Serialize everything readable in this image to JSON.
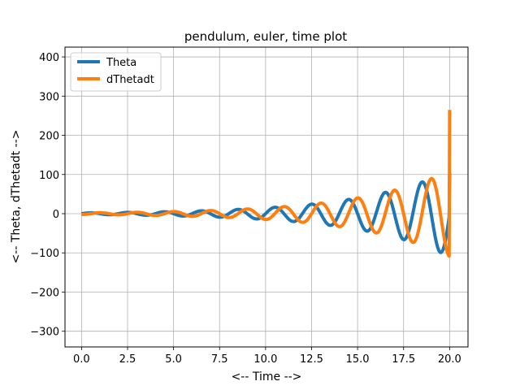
{
  "chart_data": {
    "type": "line",
    "title": "pendulum, euler, time plot",
    "xlabel": "<-- Time -->",
    "ylabel": "<-- Theta, dThetadt -->",
    "xlim": [
      -0.9,
      21.0
    ],
    "ylim": [
      -340,
      425
    ],
    "xticks": [
      0.0,
      2.5,
      5.0,
      7.5,
      10.0,
      12.5,
      15.0,
      17.5,
      20.0
    ],
    "xtick_labels": [
      "0.0",
      "2.5",
      "5.0",
      "7.5",
      "10.0",
      "12.5",
      "15.0",
      "17.5",
      "20.0"
    ],
    "yticks": [
      -300,
      -200,
      -100,
      0,
      100,
      200,
      300,
      400
    ],
    "ytick_labels": [
      "−300",
      "−200",
      "−100",
      "0",
      "100",
      "200",
      "300",
      "400"
    ],
    "grid": true,
    "legend_position": "top-left",
    "series": [
      {
        "name": "Theta",
        "color": "#1f77b4",
        "model": {
          "amplitude": 2,
          "growth_rate": 0.2,
          "omega": 3.14159,
          "phase": 1.5708
        },
        "x_range": [
          0,
          20
        ],
        "x_end_value_y": 103
      },
      {
        "name": "dThetadt",
        "color": "#ff7f0e",
        "model": {
          "amplitude": 2,
          "growth_rate": 0.2,
          "omega": 3.14159,
          "phase": 3.1416
        },
        "x_range": [
          0,
          20
        ],
        "x_end_value_y": 265
      }
    ]
  }
}
